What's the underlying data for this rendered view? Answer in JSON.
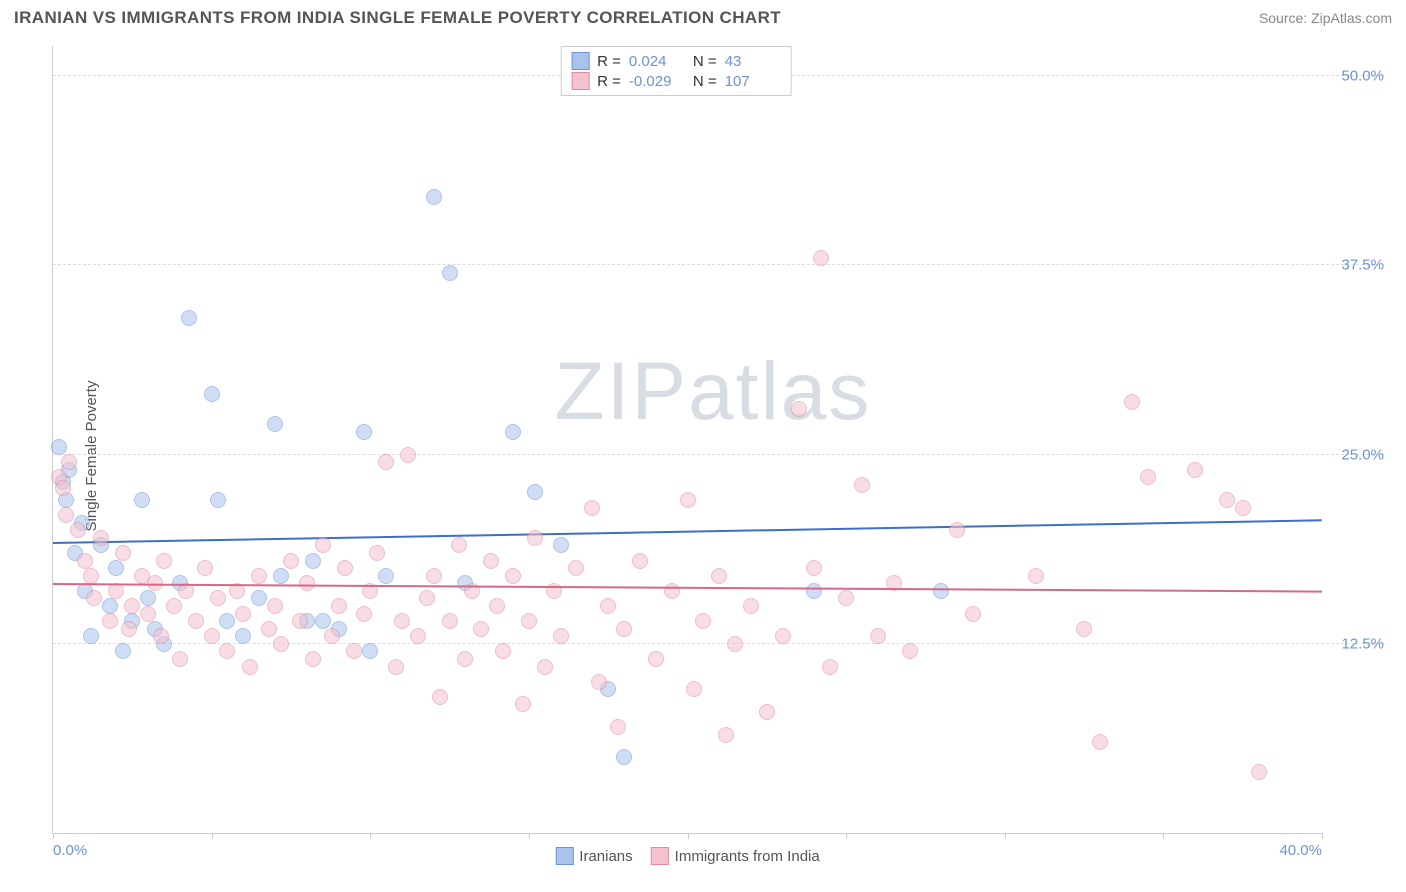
{
  "header": {
    "title": "IRANIAN VS IMMIGRANTS FROM INDIA SINGLE FEMALE POVERTY CORRELATION CHART",
    "source": "Source: ZipAtlas.com"
  },
  "ylabel": "Single Female Poverty",
  "watermark": {
    "part1": "ZIP",
    "part2": "atlas"
  },
  "chart": {
    "type": "scatter",
    "background_color": "#ffffff",
    "grid_color": "#dddddd",
    "axis_color": "#cccccc",
    "label_color": "#6b93d6",
    "xlim": [
      0,
      40
    ],
    "ylim": [
      0,
      52
    ],
    "x_ticks": [
      0,
      5,
      10,
      15,
      20,
      25,
      30,
      35,
      40
    ],
    "x_tick_labels": {
      "0": "0.0%",
      "40": "40.0%"
    },
    "y_gridlines": [
      12.5,
      25.0,
      37.5,
      50.0
    ],
    "y_tick_labels": [
      "12.5%",
      "25.0%",
      "37.5%",
      "50.0%"
    ],
    "marker_radius": 8,
    "marker_opacity": 0.55,
    "series": [
      {
        "name": "Iranians",
        "fill": "#a8c4ec",
        "stroke": "#6b93d6",
        "trend_color": "#3d6fc4",
        "trend": {
          "y_at_xmin": 19.2,
          "y_at_xmax": 20.7
        },
        "R": "0.024",
        "N": "43",
        "points": [
          [
            0.2,
            25.5
          ],
          [
            0.3,
            23.2
          ],
          [
            0.4,
            22.0
          ],
          [
            0.5,
            24.0
          ],
          [
            0.7,
            18.5
          ],
          [
            0.9,
            20.5
          ],
          [
            1.0,
            16.0
          ],
          [
            1.2,
            13.0
          ],
          [
            1.5,
            19.0
          ],
          [
            1.8,
            15.0
          ],
          [
            2.0,
            17.5
          ],
          [
            2.2,
            12.0
          ],
          [
            2.5,
            14.0
          ],
          [
            2.8,
            22.0
          ],
          [
            3.0,
            15.5
          ],
          [
            3.2,
            13.5
          ],
          [
            3.5,
            12.5
          ],
          [
            4.0,
            16.5
          ],
          [
            4.3,
            34.0
          ],
          [
            5.0,
            29.0
          ],
          [
            5.2,
            22.0
          ],
          [
            5.5,
            14.0
          ],
          [
            6.0,
            13.0
          ],
          [
            6.5,
            15.5
          ],
          [
            7.0,
            27.0
          ],
          [
            7.2,
            17.0
          ],
          [
            8.0,
            14.0
          ],
          [
            8.2,
            18.0
          ],
          [
            8.5,
            14.0
          ],
          [
            9.0,
            13.5
          ],
          [
            9.8,
            26.5
          ],
          [
            10.0,
            12.0
          ],
          [
            10.5,
            17.0
          ],
          [
            12.0,
            42.0
          ],
          [
            12.5,
            37.0
          ],
          [
            13.0,
            16.5
          ],
          [
            14.5,
            26.5
          ],
          [
            15.2,
            22.5
          ],
          [
            16.0,
            19.0
          ],
          [
            17.5,
            9.5
          ],
          [
            18.0,
            5.0
          ],
          [
            24.0,
            16.0
          ],
          [
            28.0,
            16.0
          ]
        ]
      },
      {
        "name": "Immigrants from India",
        "fill": "#f4c2ce",
        "stroke": "#e28aa0",
        "trend_color": "#d46a87",
        "trend": {
          "y_at_xmin": 16.5,
          "y_at_xmax": 16.0
        },
        "R": "-0.029",
        "N": "107",
        "points": [
          [
            0.2,
            23.5
          ],
          [
            0.3,
            22.8
          ],
          [
            0.4,
            21.0
          ],
          [
            0.5,
            24.5
          ],
          [
            0.8,
            20.0
          ],
          [
            1.0,
            18.0
          ],
          [
            1.2,
            17.0
          ],
          [
            1.3,
            15.5
          ],
          [
            1.5,
            19.5
          ],
          [
            1.8,
            14.0
          ],
          [
            2.0,
            16.0
          ],
          [
            2.2,
            18.5
          ],
          [
            2.4,
            13.5
          ],
          [
            2.5,
            15.0
          ],
          [
            2.8,
            17.0
          ],
          [
            3.0,
            14.5
          ],
          [
            3.2,
            16.5
          ],
          [
            3.4,
            13.0
          ],
          [
            3.5,
            18.0
          ],
          [
            3.8,
            15.0
          ],
          [
            4.0,
            11.5
          ],
          [
            4.2,
            16.0
          ],
          [
            4.5,
            14.0
          ],
          [
            4.8,
            17.5
          ],
          [
            5.0,
            13.0
          ],
          [
            5.2,
            15.5
          ],
          [
            5.5,
            12.0
          ],
          [
            5.8,
            16.0
          ],
          [
            6.0,
            14.5
          ],
          [
            6.2,
            11.0
          ],
          [
            6.5,
            17.0
          ],
          [
            6.8,
            13.5
          ],
          [
            7.0,
            15.0
          ],
          [
            7.2,
            12.5
          ],
          [
            7.5,
            18.0
          ],
          [
            7.8,
            14.0
          ],
          [
            8.0,
            16.5
          ],
          [
            8.2,
            11.5
          ],
          [
            8.5,
            19.0
          ],
          [
            8.8,
            13.0
          ],
          [
            9.0,
            15.0
          ],
          [
            9.2,
            17.5
          ],
          [
            9.5,
            12.0
          ],
          [
            9.8,
            14.5
          ],
          [
            10.0,
            16.0
          ],
          [
            10.2,
            18.5
          ],
          [
            10.5,
            24.5
          ],
          [
            10.8,
            11.0
          ],
          [
            11.0,
            14.0
          ],
          [
            11.2,
            25.0
          ],
          [
            11.5,
            13.0
          ],
          [
            11.8,
            15.5
          ],
          [
            12.0,
            17.0
          ],
          [
            12.2,
            9.0
          ],
          [
            12.5,
            14.0
          ],
          [
            12.8,
            19.0
          ],
          [
            13.0,
            11.5
          ],
          [
            13.2,
            16.0
          ],
          [
            13.5,
            13.5
          ],
          [
            13.8,
            18.0
          ],
          [
            14.0,
            15.0
          ],
          [
            14.2,
            12.0
          ],
          [
            14.5,
            17.0
          ],
          [
            14.8,
            8.5
          ],
          [
            15.0,
            14.0
          ],
          [
            15.2,
            19.5
          ],
          [
            15.5,
            11.0
          ],
          [
            15.8,
            16.0
          ],
          [
            16.0,
            13.0
          ],
          [
            16.5,
            17.5
          ],
          [
            17.0,
            21.5
          ],
          [
            17.2,
            10.0
          ],
          [
            17.5,
            15.0
          ],
          [
            17.8,
            7.0
          ],
          [
            18.0,
            13.5
          ],
          [
            18.5,
            18.0
          ],
          [
            19.0,
            11.5
          ],
          [
            19.5,
            16.0
          ],
          [
            20.0,
            22.0
          ],
          [
            20.2,
            9.5
          ],
          [
            20.5,
            14.0
          ],
          [
            21.0,
            17.0
          ],
          [
            21.2,
            6.5
          ],
          [
            21.5,
            12.5
          ],
          [
            22.0,
            15.0
          ],
          [
            22.5,
            8.0
          ],
          [
            23.0,
            13.0
          ],
          [
            23.5,
            28.0
          ],
          [
            24.0,
            17.5
          ],
          [
            24.2,
            38.0
          ],
          [
            24.5,
            11.0
          ],
          [
            25.0,
            15.5
          ],
          [
            25.5,
            23.0
          ],
          [
            26.0,
            13.0
          ],
          [
            26.5,
            16.5
          ],
          [
            27.0,
            12.0
          ],
          [
            28.5,
            20.0
          ],
          [
            29.0,
            14.5
          ],
          [
            31.0,
            17.0
          ],
          [
            32.5,
            13.5
          ],
          [
            33.0,
            6.0
          ],
          [
            34.0,
            28.5
          ],
          [
            34.5,
            23.5
          ],
          [
            36.0,
            24.0
          ],
          [
            37.0,
            22.0
          ],
          [
            37.5,
            21.5
          ],
          [
            38.0,
            4.0
          ]
        ]
      }
    ]
  },
  "bottom_legend": {
    "item1": "Iranians",
    "item2": "Immigrants from India"
  }
}
